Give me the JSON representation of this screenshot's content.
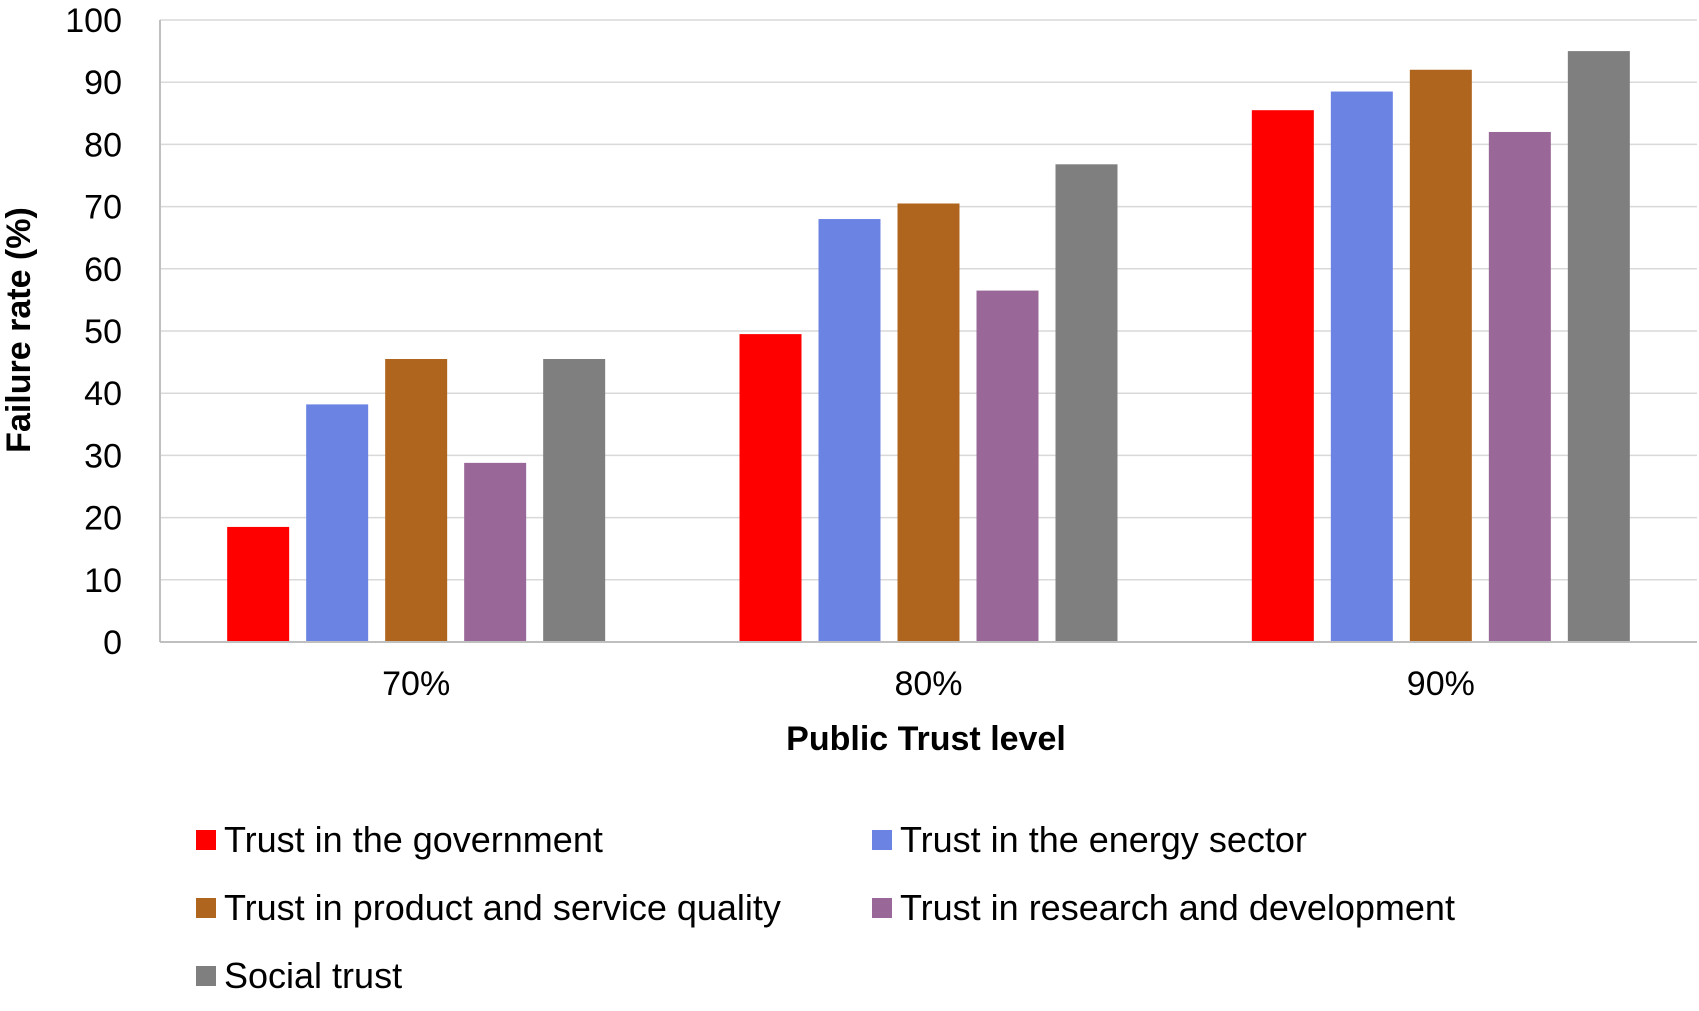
{
  "chart_data": {
    "type": "bar",
    "title": "",
    "xlabel": "Public Trust level",
    "ylabel": "Failure rate (%)",
    "categories": [
      "70%",
      "80%",
      "90%"
    ],
    "ylim": [
      0,
      100
    ],
    "yticks": [
      0,
      10,
      20,
      30,
      40,
      50,
      60,
      70,
      80,
      90,
      100
    ],
    "grid": true,
    "legend_position": "bottom",
    "series": [
      {
        "name": "Trust in the government",
        "color": "#ff0000",
        "values": [
          18.5,
          49.5,
          85.5
        ]
      },
      {
        "name": "Trust in the energy sector",
        "color": "#6b83e3",
        "values": [
          38.2,
          68.0,
          88.5
        ]
      },
      {
        "name": "Trust in product and service quality",
        "color": "#b0651f",
        "values": [
          45.5,
          70.5,
          92.0
        ]
      },
      {
        "name": "Trust in research and development",
        "color": "#9a6898",
        "values": [
          28.8,
          56.5,
          82.0
        ]
      },
      {
        "name": "Social trust",
        "color": "#7f7f7f",
        "values": [
          45.5,
          76.8,
          95.0
        ]
      }
    ]
  }
}
